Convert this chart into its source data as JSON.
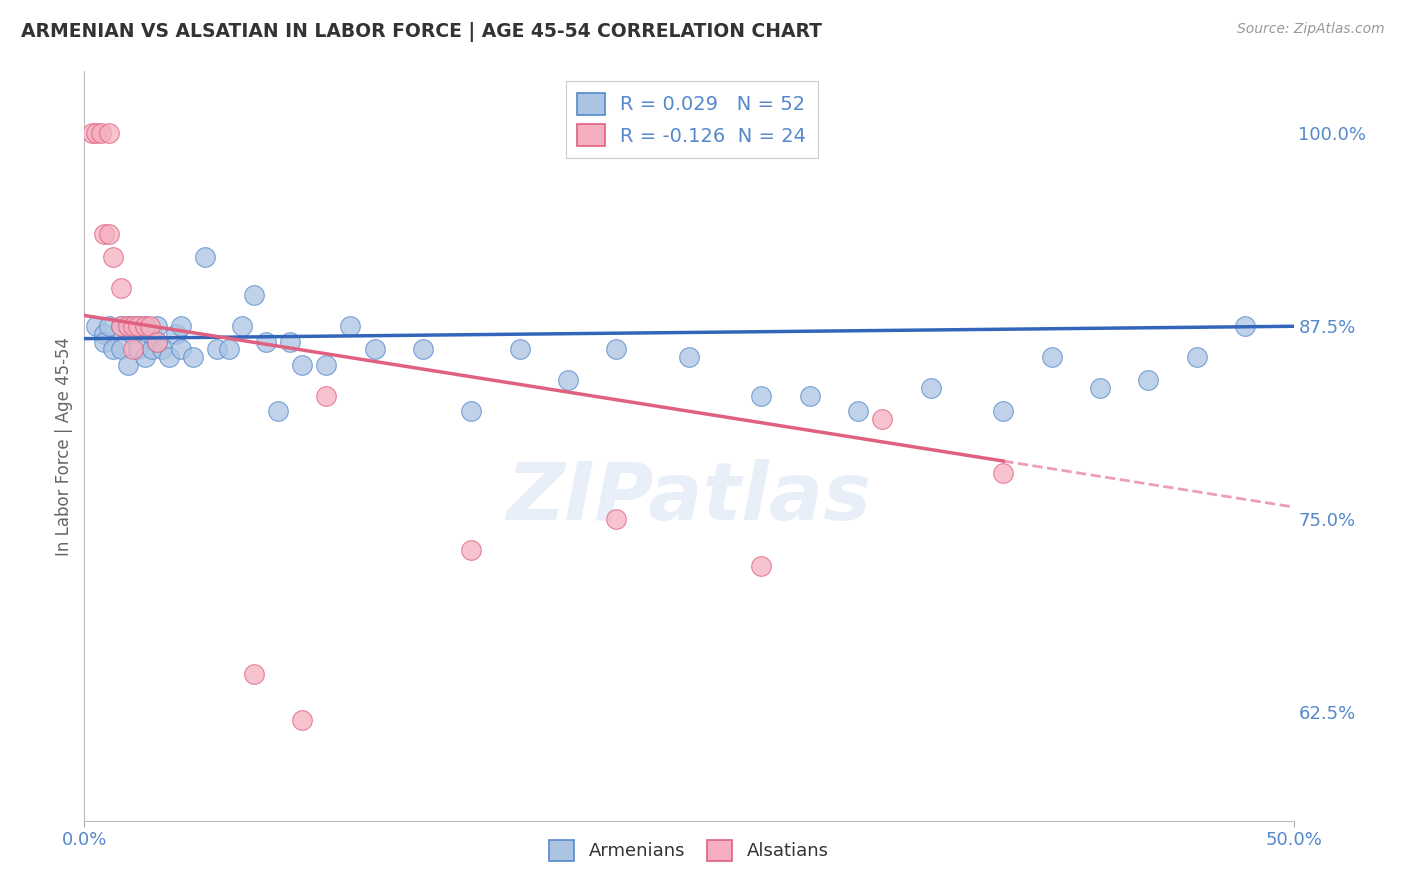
{
  "title": "ARMENIAN VS ALSATIAN IN LABOR FORCE | AGE 45-54 CORRELATION CHART",
  "source": "Source: ZipAtlas.com",
  "ylabel": "In Labor Force | Age 45-54",
  "ytick_labels": [
    "62.5%",
    "75.0%",
    "87.5%",
    "100.0%"
  ],
  "ytick_values": [
    0.625,
    0.75,
    0.875,
    1.0
  ],
  "xlim": [
    0.0,
    0.5
  ],
  "ylim": [
    0.555,
    1.04
  ],
  "r_armenian": 0.029,
  "n_armenian": 52,
  "r_alsatian": -0.126,
  "n_alsatian": 24,
  "armenian_color": "#aac4e2",
  "alsatian_color": "#f5afc0",
  "armenian_edge": "#5588cc",
  "alsatian_edge": "#e06080",
  "trend_armenian_color": "#3366bb",
  "trend_alsatian_color": "#e06080",
  "background_color": "#ffffff",
  "grid_color": "#c8d4e8",
  "title_color": "#333333",
  "axis_color": "#5588cc",
  "watermark": "ZIPatlas",
  "legend_box_color": "#ccddee",
  "armenian_scatter_x": [
    0.005,
    0.008,
    0.008,
    0.01,
    0.012,
    0.015,
    0.015,
    0.018,
    0.018,
    0.02,
    0.022,
    0.022,
    0.025,
    0.025,
    0.028,
    0.028,
    0.03,
    0.03,
    0.032,
    0.035,
    0.038,
    0.04,
    0.04,
    0.045,
    0.05,
    0.055,
    0.06,
    0.065,
    0.07,
    0.075,
    0.08,
    0.085,
    0.09,
    0.1,
    0.11,
    0.12,
    0.14,
    0.16,
    0.18,
    0.2,
    0.22,
    0.25,
    0.28,
    0.3,
    0.32,
    0.35,
    0.38,
    0.4,
    0.42,
    0.44,
    0.46,
    0.48
  ],
  "armenian_scatter_y": [
    0.875,
    0.87,
    0.865,
    0.875,
    0.86,
    0.86,
    0.875,
    0.85,
    0.875,
    0.87,
    0.86,
    0.875,
    0.855,
    0.875,
    0.86,
    0.87,
    0.865,
    0.875,
    0.86,
    0.855,
    0.87,
    0.86,
    0.875,
    0.855,
    0.92,
    0.86,
    0.86,
    0.875,
    0.895,
    0.865,
    0.82,
    0.865,
    0.85,
    0.85,
    0.875,
    0.86,
    0.86,
    0.82,
    0.86,
    0.84,
    0.86,
    0.855,
    0.83,
    0.83,
    0.82,
    0.835,
    0.82,
    0.855,
    0.835,
    0.84,
    0.855,
    0.875
  ],
  "alsatian_scatter_x": [
    0.003,
    0.005,
    0.007,
    0.008,
    0.01,
    0.01,
    0.012,
    0.015,
    0.015,
    0.018,
    0.02,
    0.02,
    0.022,
    0.025,
    0.027,
    0.03,
    0.07,
    0.09,
    0.1,
    0.16,
    0.22,
    0.28,
    0.33,
    0.38
  ],
  "alsatian_scatter_y": [
    1.0,
    1.0,
    1.0,
    0.935,
    1.0,
    0.935,
    0.92,
    0.9,
    0.875,
    0.875,
    0.875,
    0.86,
    0.875,
    0.875,
    0.875,
    0.865,
    0.65,
    0.62,
    0.83,
    0.73,
    0.75,
    0.72,
    0.815,
    0.78
  ],
  "trend_arm_x0": 0.0,
  "trend_arm_x1": 0.5,
  "trend_arm_y0": 0.867,
  "trend_arm_y1": 0.875,
  "trend_als_x0": 0.0,
  "trend_als_solid_x1": 0.38,
  "trend_als_x1": 0.5,
  "trend_als_y0": 0.882,
  "trend_als_y1": 0.758
}
